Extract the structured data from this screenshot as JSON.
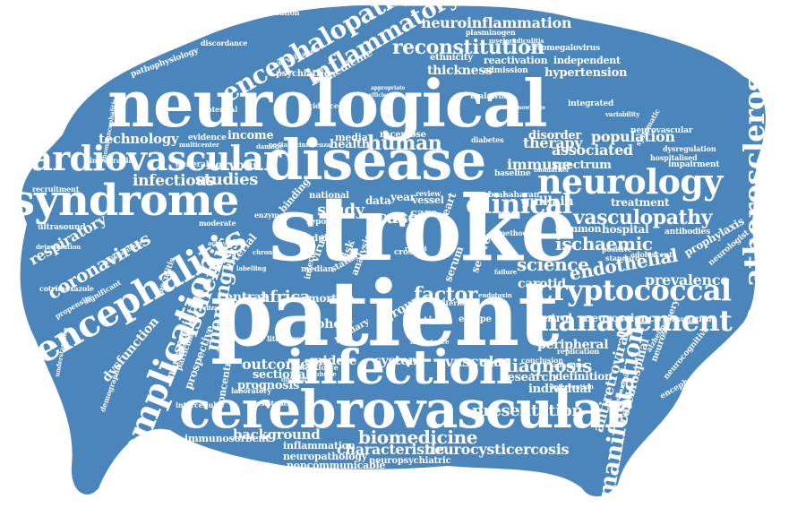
{
  "palette": {
    "primary": "#4a86bb",
    "word_on_white": "#4a86bb",
    "word_on_fill": "#ffffff",
    "background": "#ffffff"
  },
  "words": [
    {
      "text": "neurological"
    },
    {
      "text": "stroke"
    },
    {
      "text": "patient"
    },
    {
      "text": "disease"
    },
    {
      "text": "cerebrovascular"
    },
    {
      "text": "infection"
    },
    {
      "text": "syndrome"
    },
    {
      "text": "cardiovascular"
    },
    {
      "text": "neurology"
    },
    {
      "text": "cryptococcal"
    },
    {
      "text": "management"
    },
    {
      "text": "atherosclerosis"
    },
    {
      "text": "encephalitis"
    },
    {
      "text": "complication"
    },
    {
      "text": "immunodeficiency"
    },
    {
      "text": "clinical"
    },
    {
      "text": "encephalopathy"
    },
    {
      "text": "inflammatory"
    },
    {
      "text": "reconstitution"
    },
    {
      "text": "neuroinflammation"
    },
    {
      "text": "human"
    },
    {
      "text": "ischaemic"
    },
    {
      "text": "vasculopathy"
    },
    {
      "text": "manifestation"
    },
    {
      "text": "ischemic"
    },
    {
      "text": "meningitis"
    },
    {
      "text": "coronavirus"
    },
    {
      "text": "respiratory"
    },
    {
      "text": "biomedicine"
    },
    {
      "text": "presentation"
    },
    {
      "text": "background"
    },
    {
      "text": "characteristic"
    },
    {
      "text": "neurocysticercosis"
    },
    {
      "text": "inflammation"
    },
    {
      "text": "neuropathology"
    },
    {
      "text": "noncommunicable"
    },
    {
      "text": "neuropsychiatric"
    },
    {
      "text": "immunosorbent"
    },
    {
      "text": "diagnosis"
    },
    {
      "text": "vascular"
    },
    {
      "text": "system"
    },
    {
      "text": "outcome"
    },
    {
      "text": "middle"
    },
    {
      "text": "prognosis"
    },
    {
      "text": "sectional"
    },
    {
      "text": "factor"
    },
    {
      "text": "africa"
    },
    {
      "text": "central"
    },
    {
      "text": "cohort"
    },
    {
      "text": "study"
    },
    {
      "text": "case"
    },
    {
      "text": "science"
    },
    {
      "text": "endothelial"
    },
    {
      "text": "prevalence"
    },
    {
      "text": "carotid"
    },
    {
      "text": "studies"
    },
    {
      "text": "infectious"
    },
    {
      "text": "nervous"
    },
    {
      "text": "technology"
    },
    {
      "text": "income"
    },
    {
      "text": "health"
    },
    {
      "text": "population"
    },
    {
      "text": "associated"
    },
    {
      "text": "therapy"
    },
    {
      "text": "disorder"
    },
    {
      "text": "immune"
    },
    {
      "text": "spectrum"
    },
    {
      "text": "guillain"
    },
    {
      "text": "treatment"
    },
    {
      "text": "hospital"
    },
    {
      "text": "common"
    },
    {
      "text": "antiretroviral"
    },
    {
      "text": "cerebrospinal"
    },
    {
      "text": "peripheral"
    },
    {
      "text": "neuroscience"
    },
    {
      "text": "control"
    },
    {
      "text": "research"
    },
    {
      "text": "definition"
    },
    {
      "text": "individual"
    },
    {
      "text": "association"
    },
    {
      "text": "concentration"
    },
    {
      "text": "prospective"
    },
    {
      "text": "mortality"
    },
    {
      "text": "dysfunction"
    },
    {
      "text": "thickness"
    },
    {
      "text": "hypertension"
    },
    {
      "text": "independent"
    },
    {
      "text": "reactivation"
    },
    {
      "text": "admission"
    },
    {
      "text": "ethnicity"
    },
    {
      "text": "psychiatric"
    },
    {
      "text": "medicine"
    },
    {
      "text": "surveillance"
    },
    {
      "text": "pathophysiology"
    },
    {
      "text": "discordance"
    },
    {
      "text": "hospitalization"
    },
    {
      "text": "plasminogen"
    },
    {
      "text": "cytomegalovirus"
    },
    {
      "text": "integrated"
    },
    {
      "text": "potential"
    },
    {
      "text": "ultrasound"
    },
    {
      "text": "intracranial"
    },
    {
      "text": "recruitment"
    },
    {
      "text": "general"
    },
    {
      "text": "evidence"
    },
    {
      "text": "multicenter"
    },
    {
      "text": "neurovascular"
    },
    {
      "text": "dysregulation"
    },
    {
      "text": "hospitalised"
    },
    {
      "text": "impairment"
    },
    {
      "text": "prophylaxis"
    },
    {
      "text": "antibodies"
    },
    {
      "text": "adolescent"
    },
    {
      "text": "consultation"
    },
    {
      "text": "neurologist"
    },
    {
      "text": "encephalomyelitis"
    },
    {
      "text": "cotrimoxazole"
    },
    {
      "text": "propensity"
    },
    {
      "text": "significant"
    },
    {
      "text": "relationship"
    },
    {
      "text": "intima"
    },
    {
      "text": "mortem"
    },
    {
      "text": "media"
    },
    {
      "text": "racemose"
    },
    {
      "text": "national"
    },
    {
      "text": "year"
    },
    {
      "text": "data"
    },
    {
      "text": "vessel"
    },
    {
      "text": "care"
    },
    {
      "text": "review"
    },
    {
      "text": "report"
    },
    {
      "text": "adult"
    },
    {
      "text": "virus"
    },
    {
      "text": "risk"
    },
    {
      "text": "analysis"
    },
    {
      "text": "cross"
    },
    {
      "text": "severe"
    },
    {
      "text": "serum"
    },
    {
      "text": "escape"
    },
    {
      "text": "arterial"
    },
    {
      "text": "baseline"
    },
    {
      "text": "saharan"
    },
    {
      "text": "cerebral"
    },
    {
      "text": "diabetes"
    },
    {
      "text": "malawian"
    },
    {
      "text": "incidence"
    },
    {
      "text": "laboratory"
    },
    {
      "text": "intercellular"
    },
    {
      "text": "particular"
    },
    {
      "text": "vasculitis"
    },
    {
      "text": "demographic"
    },
    {
      "text": "conclusion"
    },
    {
      "text": "replication"
    },
    {
      "text": "neurosurgery"
    },
    {
      "text": "neurocognitive"
    },
    {
      "text": "alzheimer"
    },
    {
      "text": "positive"
    },
    {
      "text": "standard"
    },
    {
      "text": "method"
    },
    {
      "text": "systematic"
    },
    {
      "text": "variability"
    },
    {
      "text": "knowledge"
    },
    {
      "text": "coefficient"
    },
    {
      "text": "appropriate"
    },
    {
      "text": "pediatric"
    },
    {
      "text": "influenza"
    },
    {
      "text": "damage"
    },
    {
      "text": "binding"
    },
    {
      "text": "enzyme"
    },
    {
      "text": "moderate"
    },
    {
      "text": "median"
    },
    {
      "text": "internal"
    },
    {
      "text": "status"
    },
    {
      "text": "group"
    },
    {
      "text": "heart"
    },
    {
      "text": "primary"
    },
    {
      "text": "chronic"
    },
    {
      "text": "labelling"
    },
    {
      "text": "workforce"
    },
    {
      "text": "diversity"
    },
    {
      "text": "literature"
    },
    {
      "text": "importance"
    },
    {
      "text": "endotoxin"
    },
    {
      "text": "rhombencephalitis"
    },
    {
      "text": "activation"
    },
    {
      "text": "deterioration"
    },
    {
      "text": "myeloradiculitis"
    },
    {
      "text": "biomarker"
    },
    {
      "text": "understanding"
    },
    {
      "text": "resistance"
    },
    {
      "text": "criterion"
    },
    {
      "text": "failure"
    },
    {
      "text": "elizabeth"
    },
    {
      "text": "soluble"
    },
    {
      "text": "reflect"
    },
    {
      "text": "mechanism"
    },
    {
      "text": "adhesion"
    },
    {
      "text": "intervention"
    }
  ]
}
